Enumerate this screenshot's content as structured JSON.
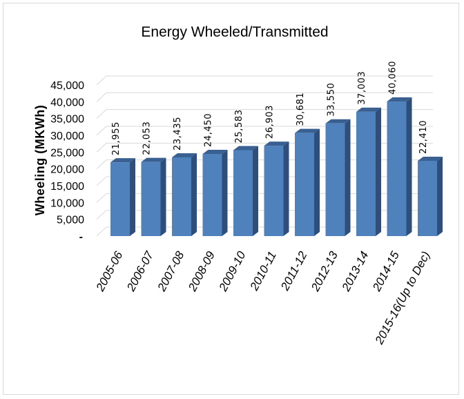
{
  "chart_data": {
    "type": "bar",
    "title": "Energy Wheeled/Transmitted",
    "ylabel": "Wheeling (MKWh)",
    "xlabel": "",
    "categories": [
      "2005-06",
      "2006-07",
      "2007-08",
      "2008-09",
      "2009-10",
      "2010-11",
      "2011-12",
      "2012-13",
      "2013-14",
      "2014-15",
      "2015-16(Up to Dec)"
    ],
    "values": [
      21955,
      22053,
      23435,
      24450,
      25583,
      26903,
      30681,
      33550,
      37003,
      40060,
      22410
    ],
    "value_labels": [
      "21,955",
      "22,053",
      "23,435",
      "24,450",
      "25,583",
      "26,903",
      "30,681",
      "33,550",
      "37,003",
      "40,060",
      "22,410"
    ],
    "ylim": [
      0,
      45000
    ],
    "yticks": [
      0,
      5000,
      10000,
      15000,
      20000,
      25000,
      30000,
      35000,
      40000,
      45000
    ],
    "ytick_labels": [
      "-",
      "5,000",
      "10,000",
      "15,000",
      "20,000",
      "25,000",
      "30,000",
      "35,000",
      "40,000",
      "45,000"
    ],
    "grid": true,
    "legend": "none",
    "colors": {
      "bar_front": "#4f81bd",
      "bar_side": "#2f4f7a",
      "bar_top": "#3a5f91",
      "grid": "#d9d9d9"
    }
  }
}
